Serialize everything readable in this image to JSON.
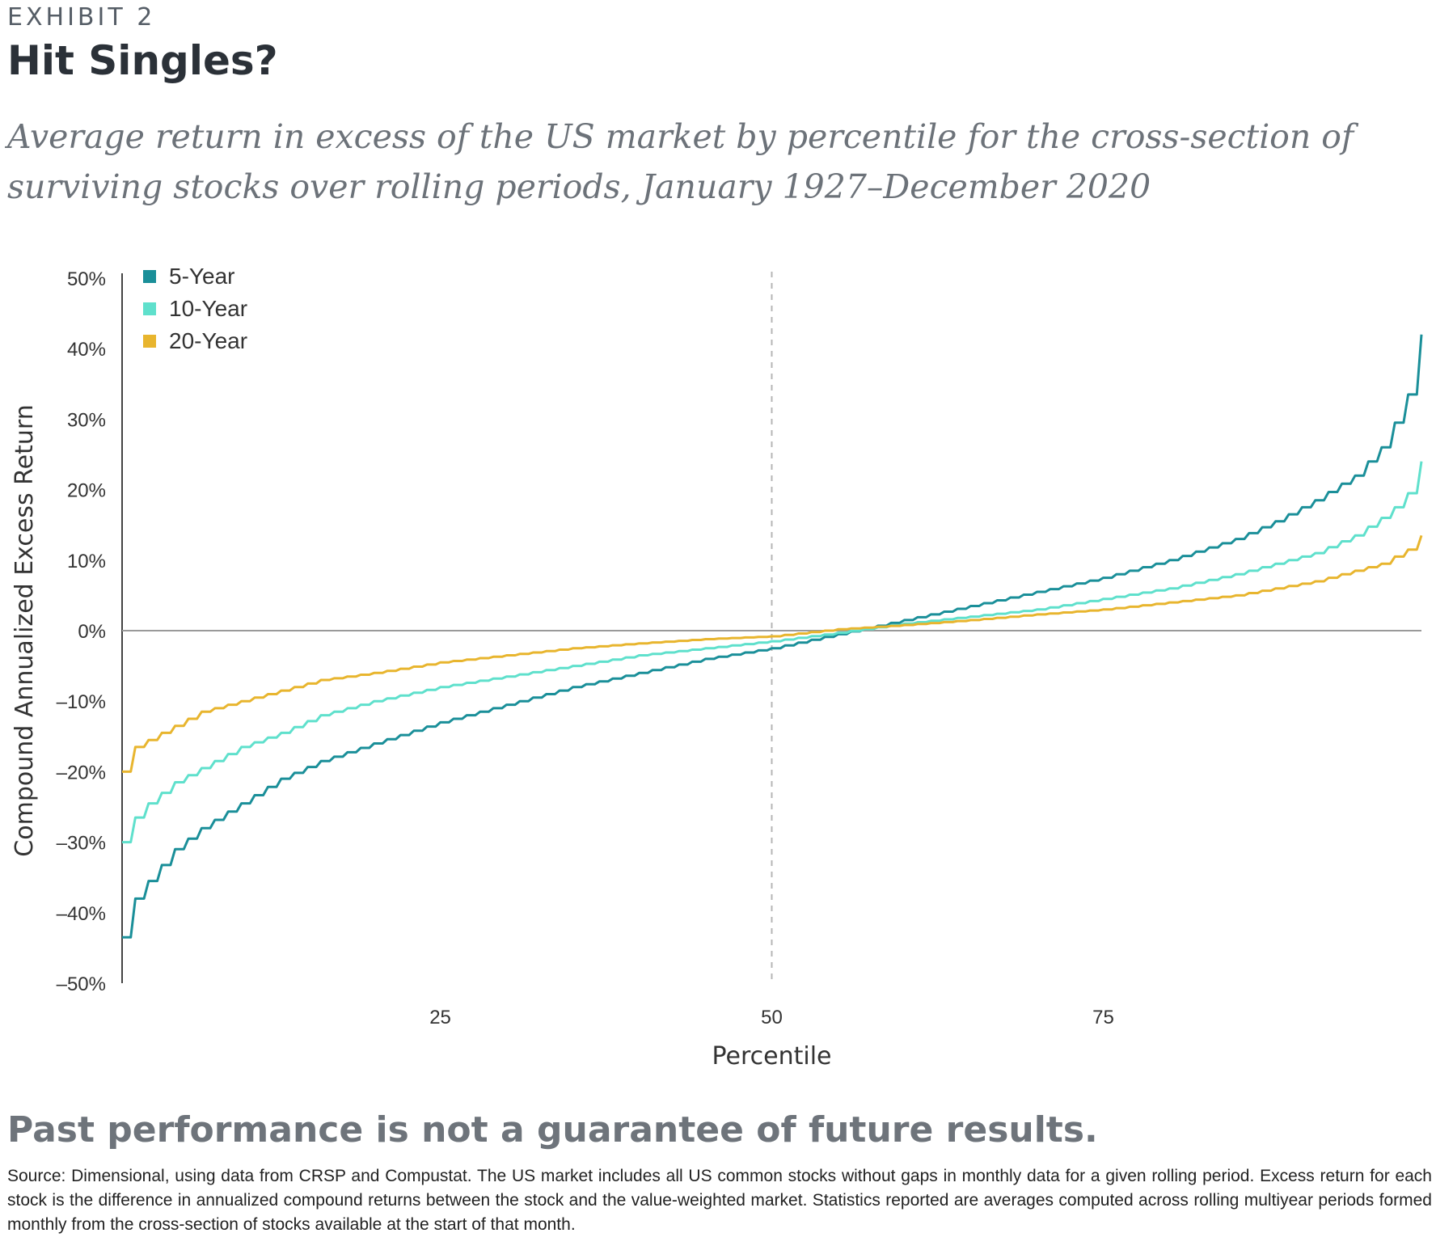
{
  "header": {
    "exhibit": "EXHIBIT 2",
    "title": "Hit Singles?",
    "subtitle": "Average return in excess of the US market by percentile for the cross-section of surviving stocks over rolling periods, January 1927–December 2020"
  },
  "footer": {
    "disclaimer": "Past performance is not a guarantee of future results.",
    "source": "Source: Dimensional, using data from CRSP and Compustat. The US market includes all US common stocks without gaps in monthly data for a given rolling period. Excess return for each stock is the difference in annualized compound returns between the stock and the value-weighted market. Statistics reported are averages computed across rolling multiyear periods formed monthly from the cross-section of stocks available at the start of that month."
  },
  "chart_data": {
    "type": "line",
    "title": "Hit Singles?",
    "xlabel": "Percentile",
    "ylabel": "Compound Annualized Excess Return",
    "xlim": [
      1,
      99
    ],
    "ylim": [
      -50,
      50
    ],
    "x_ticks": [
      {
        "value": 25,
        "label": "25"
      },
      {
        "value": 50,
        "label": "50"
      },
      {
        "value": 75,
        "label": "75"
      }
    ],
    "y_ticks": [
      {
        "value": 50,
        "label": "50%"
      },
      {
        "value": 40,
        "label": "40%"
      },
      {
        "value": 30,
        "label": "30%"
      },
      {
        "value": 20,
        "label": "20%"
      },
      {
        "value": 10,
        "label": "10%"
      },
      {
        "value": 0,
        "label": "0%"
      },
      {
        "value": -10,
        "label": "–10%"
      },
      {
        "value": -20,
        "label": "–20%"
      },
      {
        "value": -30,
        "label": "–30%"
      },
      {
        "value": -40,
        "label": "–40%"
      },
      {
        "value": -50,
        "label": "–50%"
      }
    ],
    "reference_line_x": 50,
    "zero_line": true,
    "legend_position": "top-left",
    "x": [
      1,
      2,
      3,
      5,
      7,
      10,
      13,
      16,
      20,
      25,
      30,
      35,
      40,
      45,
      50,
      55,
      60,
      65,
      70,
      75,
      80,
      85,
      88,
      91,
      94,
      96,
      97,
      98,
      99
    ],
    "series": [
      {
        "name": "5-Year",
        "color": "#1a8f99",
        "values": [
          -43.5,
          -38.0,
          -35.5,
          -31.0,
          -28.0,
          -24.5,
          -21.0,
          -18.5,
          -16.0,
          -13.0,
          -10.5,
          -8.0,
          -6.0,
          -4.0,
          -2.5,
          -0.5,
          1.5,
          3.5,
          5.5,
          7.5,
          10.0,
          13.0,
          15.5,
          18.5,
          22.0,
          26.0,
          29.5,
          33.5,
          42.0
        ]
      },
      {
        "name": "10-Year",
        "color": "#5fe0cc",
        "values": [
          -30.0,
          -26.5,
          -24.5,
          -21.5,
          -19.5,
          -16.5,
          -14.5,
          -12.0,
          -10.0,
          -8.0,
          -6.5,
          -5.0,
          -3.5,
          -2.5,
          -1.5,
          -0.3,
          1.0,
          2.0,
          3.0,
          4.5,
          6.0,
          8.0,
          9.5,
          11.0,
          13.5,
          16.0,
          17.5,
          19.5,
          24.0
        ]
      },
      {
        "name": "20-Year",
        "color": "#e8b52e",
        "values": [
          -20.0,
          -16.5,
          -15.5,
          -13.5,
          -11.5,
          -10.0,
          -8.5,
          -7.0,
          -6.0,
          -4.5,
          -3.5,
          -2.5,
          -1.8,
          -1.2,
          -0.8,
          0.2,
          0.8,
          1.5,
          2.3,
          3.0,
          4.0,
          5.0,
          6.0,
          7.0,
          8.5,
          9.5,
          10.5,
          11.5,
          13.5
        ]
      }
    ]
  }
}
